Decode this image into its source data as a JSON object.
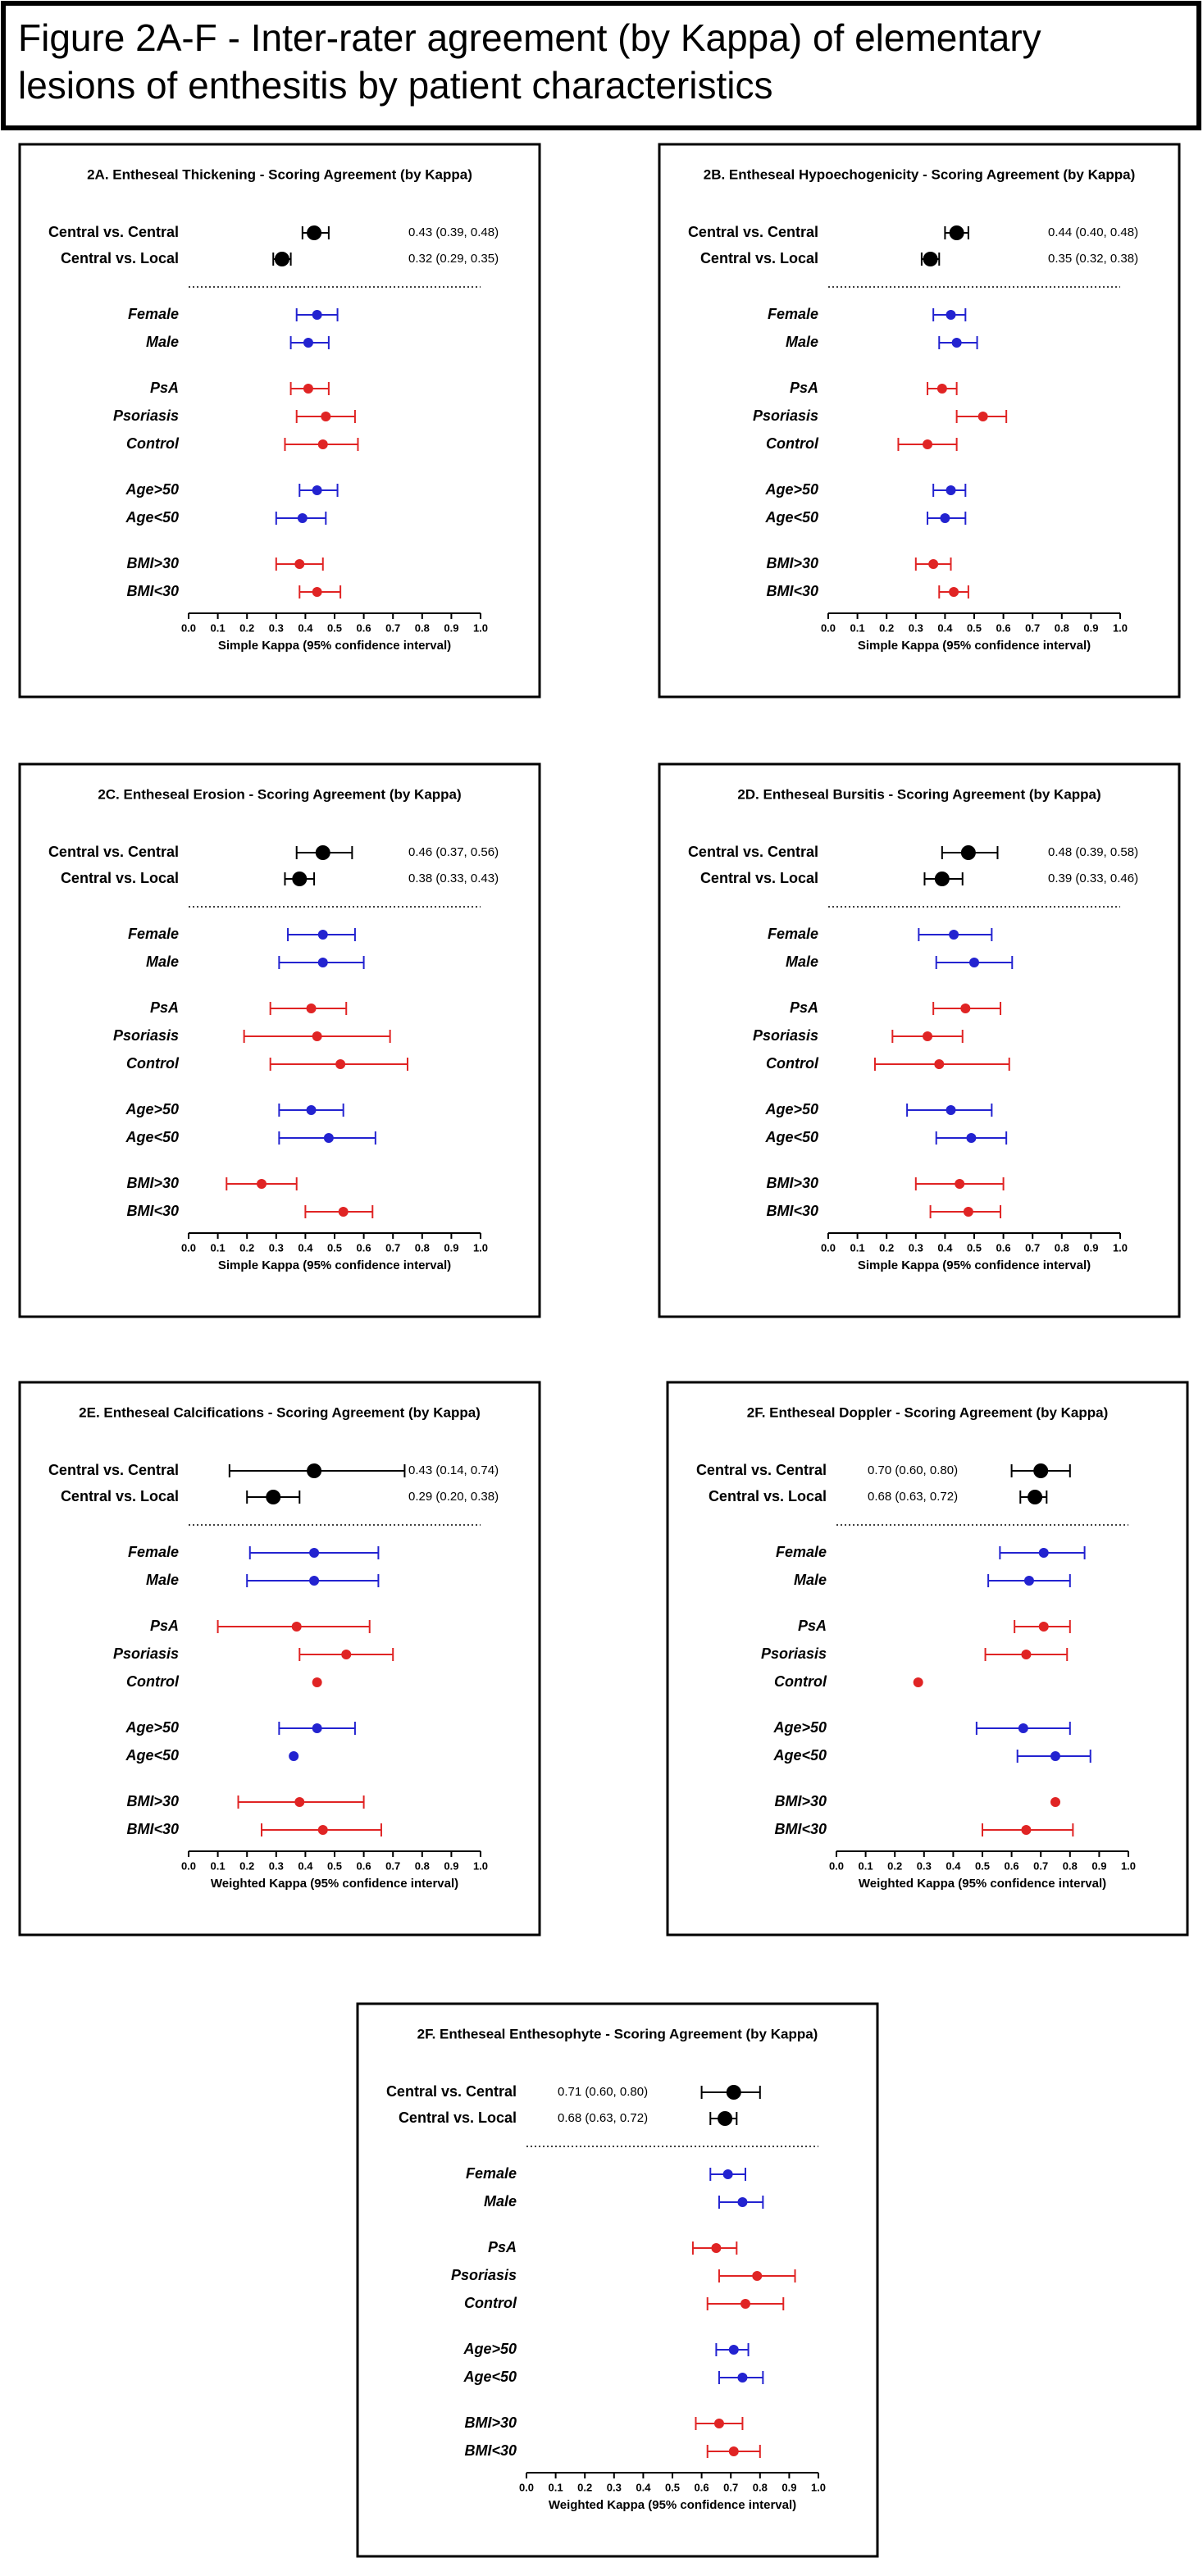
{
  "title": [
    "Figure 2A-F - Inter-rater agreement (by Kappa) of elementary",
    "lesions of enthesitis by patient characteristics"
  ],
  "chart_data": [
    {
      "type": "forest",
      "title": "2A. Entheseal Thickening -  Scoring Agreement (by Kappa)",
      "xlabel": "Simple Kappa (95% confidence interval)",
      "xlim": [
        0,
        1
      ],
      "xticks": [
        {
          "value": 0,
          "label": "0.0"
        },
        0.1,
        0.2,
        0.3,
        0.4,
        0.5,
        0.6,
        0.7,
        0.8,
        0.9,
        {
          "value": 1,
          "label": "1.0"
        }
      ],
      "groups": [
        {
          "color": "#000000",
          "categories": [
            "Central vs. Central",
            "Central vs. Local"
          ],
          "values": [
            0.43,
            0.32
          ],
          "lower": [
            0.39,
            0.29
          ],
          "upper": [
            0.48,
            0.35
          ],
          "value_labels": [
            "0.43  (0.39, 0.48)",
            "0.32 (0.29, 0.35)"
          ]
        },
        {
          "color": "#2323d0",
          "categories": [
            "Female",
            "Male"
          ],
          "values": [
            0.44,
            0.41
          ],
          "lower": [
            0.37,
            0.35
          ],
          "upper": [
            0.51,
            0.48
          ]
        },
        {
          "color": "#e02424",
          "categories": [
            "PsA",
            "Psoriasis",
            "Control"
          ],
          "values": [
            0.41,
            0.47,
            0.46
          ],
          "lower": [
            0.35,
            0.37,
            0.33
          ],
          "upper": [
            0.48,
            0.57,
            0.58
          ]
        },
        {
          "color": "#2323d0",
          "categories": [
            "Age>50",
            "Age<50"
          ],
          "values": [
            0.44,
            0.39
          ],
          "lower": [
            0.38,
            0.3
          ],
          "upper": [
            0.51,
            0.47
          ]
        },
        {
          "color": "#e02424",
          "categories": [
            "BMI>30",
            "BMI<30"
          ],
          "values": [
            0.38,
            0.44
          ],
          "lower": [
            0.3,
            0.38
          ],
          "upper": [
            0.46,
            0.52
          ]
        }
      ]
    },
    {
      "type": "forest",
      "title": "2B. Entheseal Hypoechogenicity - Scoring Agreement (by Kappa)",
      "xlabel": "Simple Kappa (95% confidence interval)",
      "xlim": [
        0,
        1
      ],
      "xticks": [
        {
          "value": 0,
          "label": "0.0"
        },
        0.1,
        0.2,
        0.3,
        0.4,
        0.5,
        0.6,
        0.7,
        0.8,
        0.9,
        {
          "value": 1,
          "label": "1.0"
        }
      ],
      "groups": [
        {
          "color": "#000000",
          "categories": [
            "Central vs. Central",
            "Central vs. Local"
          ],
          "values": [
            0.44,
            0.35
          ],
          "lower": [
            0.4,
            0.32
          ],
          "upper": [
            0.48,
            0.38
          ],
          "value_labels": [
            "0.44 (0.40, 0.48)",
            "0.35 (0.32, 0.38)"
          ]
        },
        {
          "color": "#2323d0",
          "categories": [
            "Female",
            "Male"
          ],
          "values": [
            0.42,
            0.44
          ],
          "lower": [
            0.36,
            0.38
          ],
          "upper": [
            0.47,
            0.51
          ]
        },
        {
          "color": "#e02424",
          "categories": [
            "PsA",
            "Psoriasis",
            "Control"
          ],
          "values": [
            0.39,
            0.53,
            0.34
          ],
          "lower": [
            0.34,
            0.44,
            0.24
          ],
          "upper": [
            0.44,
            0.61,
            0.44
          ]
        },
        {
          "color": "#2323d0",
          "categories": [
            "Age>50",
            "Age<50"
          ],
          "values": [
            0.42,
            0.4
          ],
          "lower": [
            0.36,
            0.34
          ],
          "upper": [
            0.47,
            0.47
          ]
        },
        {
          "color": "#e02424",
          "categories": [
            "BMI>30",
            "BMI<30"
          ],
          "values": [
            0.36,
            0.43
          ],
          "lower": [
            0.3,
            0.38
          ],
          "upper": [
            0.42,
            0.48
          ]
        }
      ]
    },
    {
      "type": "forest",
      "title": "2C. Entheseal Erosion - Scoring Agreement (by Kappa)",
      "xlabel": "Simple Kappa (95% confidence interval)",
      "xlim": [
        0,
        1
      ],
      "xticks": [
        {
          "value": 0,
          "label": "0.0"
        },
        0.1,
        0.2,
        0.3,
        0.4,
        0.5,
        0.6,
        0.7,
        0.8,
        0.9,
        {
          "value": 1,
          "label": "1.0"
        }
      ],
      "groups": [
        {
          "color": "#000000",
          "categories": [
            "Central vs. Central",
            "Central vs. Local"
          ],
          "values": [
            0.46,
            0.38
          ],
          "lower": [
            0.37,
            0.33
          ],
          "upper": [
            0.56,
            0.43
          ],
          "value_labels": [
            "0.46 (0.37, 0.56)",
            "0.38 (0.33, 0.43)"
          ]
        },
        {
          "color": "#2323d0",
          "categories": [
            "Female",
            "Male"
          ],
          "values": [
            0.46,
            0.46
          ],
          "lower": [
            0.34,
            0.31
          ],
          "upper": [
            0.57,
            0.6
          ]
        },
        {
          "color": "#e02424",
          "categories": [
            "PsA",
            "Psoriasis",
            "Control"
          ],
          "values": [
            0.42,
            0.44,
            0.52
          ],
          "lower": [
            0.28,
            0.19,
            0.28
          ],
          "upper": [
            0.54,
            0.69,
            0.75
          ]
        },
        {
          "color": "#2323d0",
          "categories": [
            "Age>50",
            "Age<50"
          ],
          "values": [
            0.42,
            0.48
          ],
          "lower": [
            0.31,
            0.31
          ],
          "upper": [
            0.53,
            0.64
          ]
        },
        {
          "color": "#e02424",
          "categories": [
            "BMI>30",
            "BMI<30"
          ],
          "values": [
            0.25,
            0.53
          ],
          "lower": [
            0.13,
            0.4
          ],
          "upper": [
            0.37,
            0.63
          ]
        }
      ]
    },
    {
      "type": "forest",
      "title": "2D. Entheseal Bursitis - Scoring Agreement (by Kappa)",
      "xlabel": "Simple Kappa (95% confidence interval)",
      "xlim": [
        0,
        1
      ],
      "xticks": [
        {
          "value": 0,
          "label": "0.0"
        },
        0.1,
        0.2,
        0.3,
        0.4,
        0.5,
        0.6,
        0.7,
        0.8,
        0.9,
        {
          "value": 1,
          "label": "1.0"
        }
      ],
      "groups": [
        {
          "color": "#000000",
          "categories": [
            "Central vs. Central",
            "Central vs. Local"
          ],
          "values": [
            0.48,
            0.39
          ],
          "lower": [
            0.39,
            0.33
          ],
          "upper": [
            0.58,
            0.46
          ],
          "value_labels": [
            "0.48 (0.39, 0.58)",
            "0.39 (0.33, 0.46)"
          ]
        },
        {
          "color": "#2323d0",
          "categories": [
            "Female",
            "Male"
          ],
          "values": [
            0.43,
            0.5
          ],
          "lower": [
            0.31,
            0.37
          ],
          "upper": [
            0.56,
            0.63
          ]
        },
        {
          "color": "#e02424",
          "categories": [
            "PsA",
            "Psoriasis",
            "Control"
          ],
          "values": [
            0.47,
            0.34,
            0.38
          ],
          "lower": [
            0.36,
            0.22,
            0.16
          ],
          "upper": [
            0.59,
            0.46,
            0.62
          ]
        },
        {
          "color": "#2323d0",
          "categories": [
            "Age>50",
            "Age<50"
          ],
          "values": [
            0.42,
            0.49
          ],
          "lower": [
            0.27,
            0.37
          ],
          "upper": [
            0.56,
            0.61
          ]
        },
        {
          "color": "#e02424",
          "categories": [
            "BMI>30",
            "BMI<30"
          ],
          "values": [
            0.45,
            0.48
          ],
          "lower": [
            0.3,
            0.35
          ],
          "upper": [
            0.6,
            0.59
          ]
        }
      ]
    },
    {
      "type": "forest",
      "title": "2E. Entheseal Calcifications - Scoring Agreement (by Kappa)",
      "xlabel": "Weighted Kappa (95% confidence interval)",
      "xlim": [
        0,
        1
      ],
      "xticks": [
        {
          "value": 0,
          "label": "0.0"
        },
        0.1,
        0.2,
        0.3,
        0.4,
        0.5,
        0.6,
        0.7,
        0.8,
        0.9,
        {
          "value": 1,
          "label": "1.0"
        }
      ],
      "groups": [
        {
          "color": "#000000",
          "categories": [
            "Central vs. Central",
            "Central vs. Local"
          ],
          "values": [
            0.43,
            0.29
          ],
          "lower": [
            0.14,
            0.2
          ],
          "upper": [
            0.74,
            0.38
          ],
          "value_labels": [
            "0.43 (0.14, 0.74)",
            "0.29 (0.20, 0.38)"
          ]
        },
        {
          "color": "#2323d0",
          "categories": [
            "Female",
            "Male"
          ],
          "values": [
            0.43,
            0.43
          ],
          "lower": [
            0.21,
            0.2
          ],
          "upper": [
            0.65,
            0.65
          ]
        },
        {
          "color": "#e02424",
          "categories": [
            "PsA",
            "Psoriasis",
            "Control"
          ],
          "values": [
            0.37,
            0.54,
            0.44
          ],
          "lower": [
            0.1,
            0.38,
            null
          ],
          "upper": [
            0.62,
            0.7,
            null
          ]
        },
        {
          "color": "#2323d0",
          "categories": [
            "Age>50",
            "Age<50"
          ],
          "values": [
            0.44,
            0.36
          ],
          "lower": [
            0.31,
            null
          ],
          "upper": [
            0.57,
            null
          ]
        },
        {
          "color": "#e02424",
          "categories": [
            "BMI>30",
            "BMI<30"
          ],
          "values": [
            0.38,
            0.46
          ],
          "lower": [
            0.17,
            0.25
          ],
          "upper": [
            0.6,
            0.66
          ]
        }
      ]
    },
    {
      "type": "forest",
      "title": "2F. Entheseal Doppler - Scoring Agreement (by Kappa)",
      "xlabel": "Weighted Kappa (95% confidence interval)",
      "xlim": [
        0,
        1
      ],
      "xticks": [
        {
          "value": 0,
          "label": "0.0"
        },
        0.1,
        0.2,
        0.3,
        0.4,
        0.5,
        0.6,
        0.7,
        0.8,
        0.9,
        {
          "value": 1,
          "label": "1.0"
        }
      ],
      "groups": [
        {
          "color": "#000000",
          "categories": [
            "Central vs. Central",
            "Central vs. Local"
          ],
          "values": [
            0.7,
            0.68
          ],
          "lower": [
            0.6,
            0.63
          ],
          "upper": [
            0.8,
            0.72
          ],
          "value_labels": [
            "0.70 (0.60, 0.80)",
            "0.68 (0.63, 0.72)"
          ]
        },
        {
          "color": "#2323d0",
          "categories": [
            "Female",
            "Male"
          ],
          "values": [
            0.71,
            0.66
          ],
          "lower": [
            0.56,
            0.52
          ],
          "upper": [
            0.85,
            0.8
          ]
        },
        {
          "color": "#e02424",
          "categories": [
            "PsA",
            "Psoriasis",
            "Control"
          ],
          "values": [
            0.71,
            0.65,
            0.28
          ],
          "lower": [
            0.61,
            0.51,
            null
          ],
          "upper": [
            0.8,
            0.79,
            null
          ]
        },
        {
          "color": "#2323d0",
          "categories": [
            "Age>50",
            "Age<50"
          ],
          "values": [
            0.64,
            0.75
          ],
          "lower": [
            0.48,
            0.62
          ],
          "upper": [
            0.8,
            0.87
          ]
        },
        {
          "color": "#e02424",
          "categories": [
            "BMI>30",
            "BMI<30"
          ],
          "values": [
            0.75,
            0.65
          ],
          "lower": [
            null,
            0.5
          ],
          "upper": [
            null,
            0.81
          ]
        }
      ]
    },
    {
      "type": "forest",
      "title": "2F. Entheseal Enthesophyte - Scoring Agreement (by Kappa)",
      "xlabel": "Weighted Kappa (95% confidence interval)",
      "xlim": [
        0,
        1
      ],
      "xticks": [
        {
          "value": 0,
          "label": "0.0"
        },
        0.1,
        0.2,
        0.3,
        0.4,
        0.5,
        0.6,
        0.7,
        0.8,
        0.9,
        {
          "value": 1,
          "label": "1.0"
        }
      ],
      "groups": [
        {
          "color": "#000000",
          "categories": [
            "Central vs. Central",
            "Central vs. Local"
          ],
          "values": [
            0.71,
            0.68
          ],
          "lower": [
            0.6,
            0.63
          ],
          "upper": [
            0.8,
            0.72
          ],
          "value_labels": [
            "0.71 (0.60, 0.80)",
            "0.68 (0.63, 0.72)"
          ]
        },
        {
          "color": "#2323d0",
          "categories": [
            "Female",
            "Male"
          ],
          "values": [
            0.69,
            0.74
          ],
          "lower": [
            0.63,
            0.66
          ],
          "upper": [
            0.75,
            0.81
          ]
        },
        {
          "color": "#e02424",
          "categories": [
            "PsA",
            "Psoriasis",
            "Control"
          ],
          "values": [
            0.65,
            0.79,
            0.75
          ],
          "lower": [
            0.57,
            0.66,
            0.62
          ],
          "upper": [
            0.72,
            0.92,
            0.88
          ]
        },
        {
          "color": "#2323d0",
          "categories": [
            "Age>50",
            "Age<50"
          ],
          "values": [
            0.71,
            0.74
          ],
          "lower": [
            0.65,
            0.66
          ],
          "upper": [
            0.76,
            0.81
          ]
        },
        {
          "color": "#e02424",
          "categories": [
            "BMI>30",
            "BMI<30"
          ],
          "values": [
            0.66,
            0.71
          ],
          "lower": [
            0.58,
            0.62
          ],
          "upper": [
            0.74,
            0.8
          ]
        }
      ]
    }
  ]
}
